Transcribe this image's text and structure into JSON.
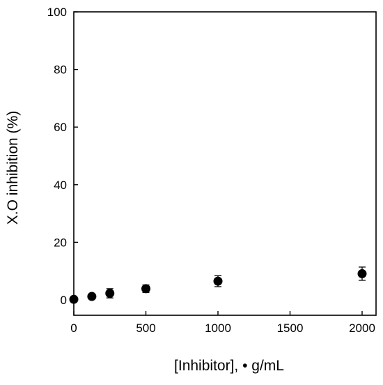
{
  "chart_data": {
    "type": "scatter",
    "title": "",
    "xlabel": "[Inhibitor], • g/mL",
    "ylabel": "X.O inhibition (%)",
    "xlim": [
      0,
      2000
    ],
    "ylim": [
      0,
      100
    ],
    "x_ticks": [
      "0",
      "500",
      "1000",
      "1500",
      "2000"
    ],
    "y_ticks": [
      "0",
      "20",
      "40",
      "60",
      "80",
      "100"
    ],
    "grid": false,
    "legend": "none",
    "marker_color": "#000000",
    "series": [
      {
        "x": [
          0,
          125,
          250,
          500,
          1000,
          2000
        ],
        "y": [
          0.2,
          1.2,
          2.3,
          3.9,
          6.5,
          9.1
        ],
        "error": [
          0.4,
          0.6,
          1.6,
          1.3,
          1.9,
          2.3
        ]
      }
    ]
  }
}
